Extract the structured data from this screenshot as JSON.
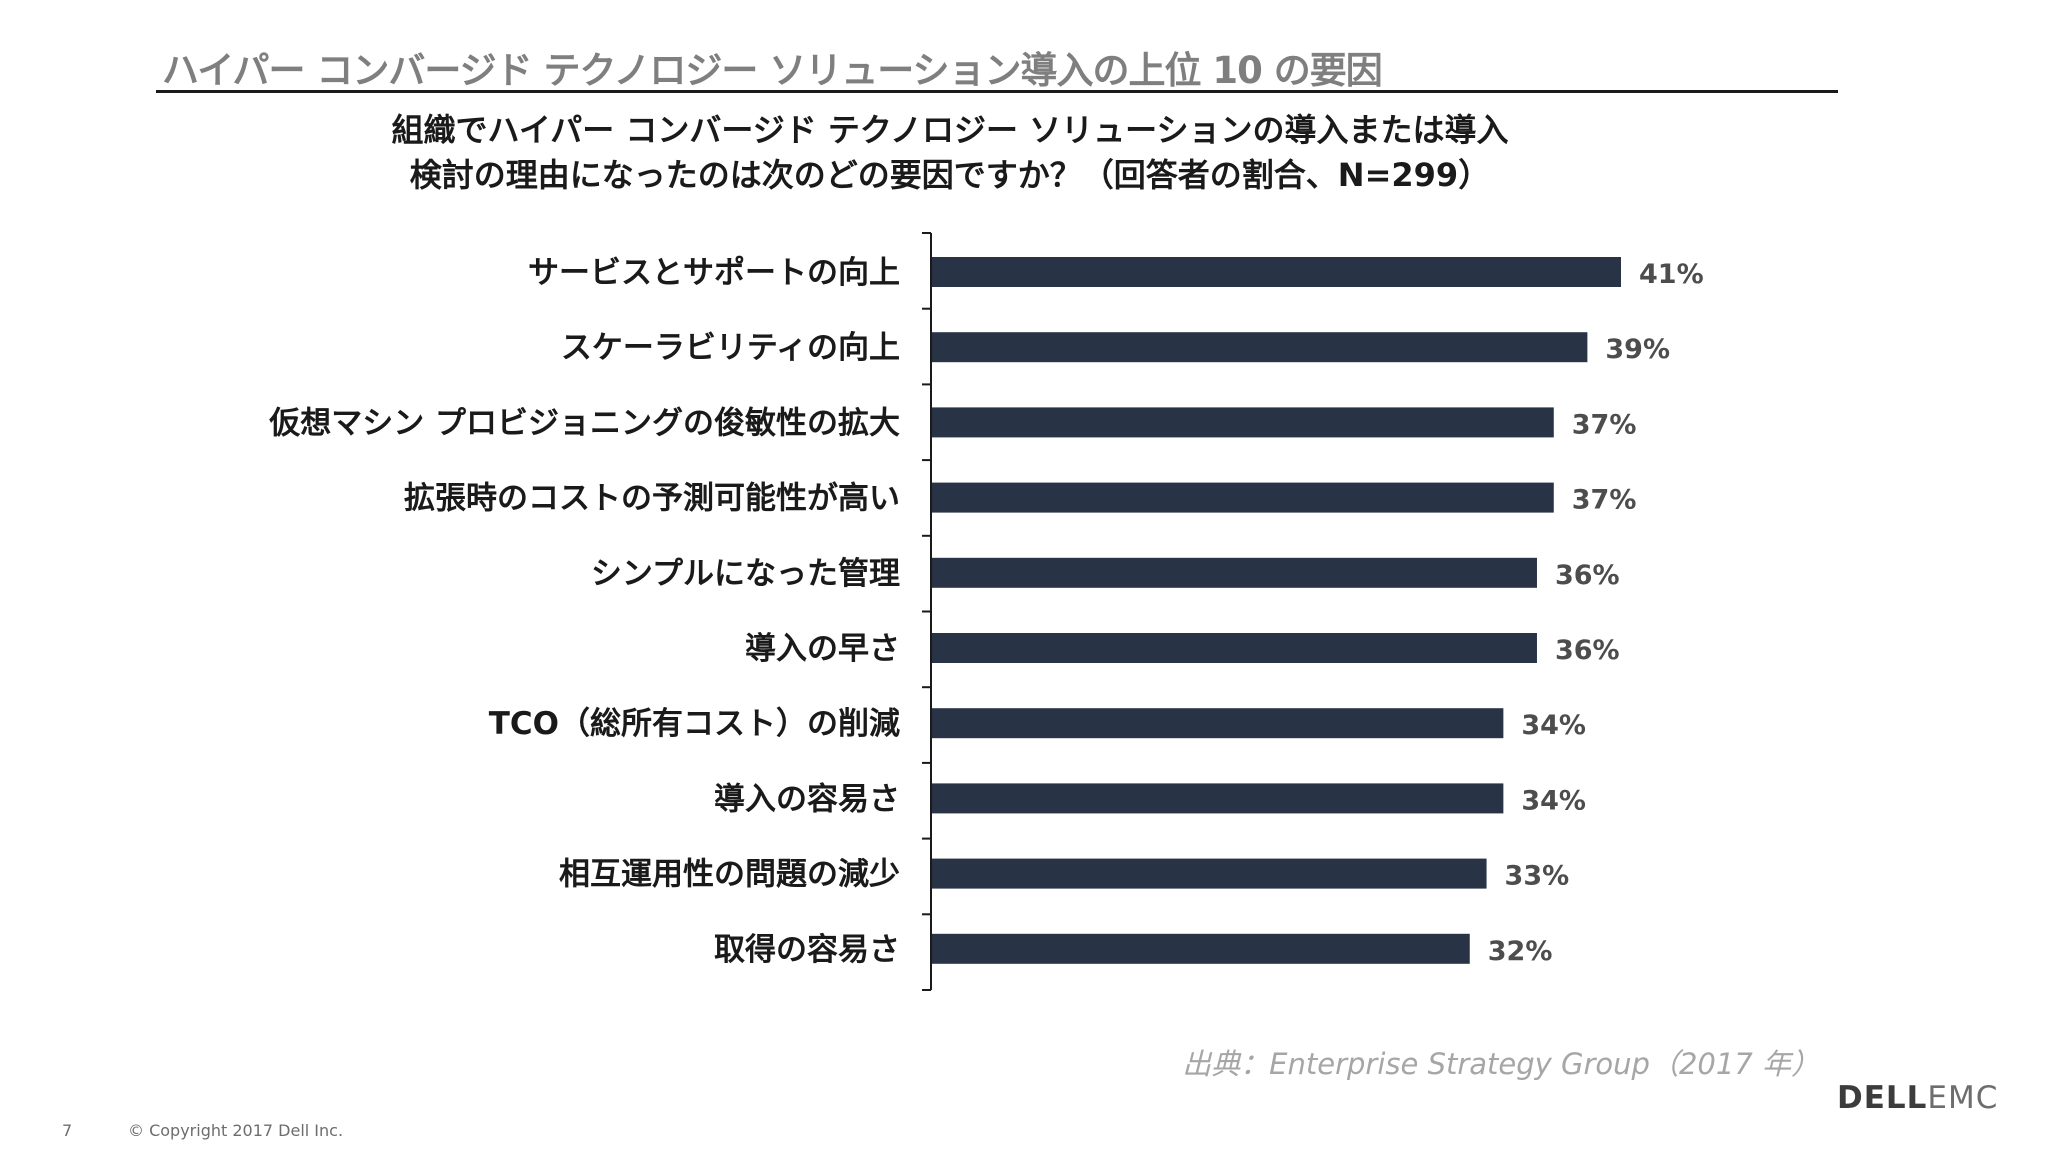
{
  "slide": {
    "title": "ハイパー コンバージド テクノロジー ソリューション導入の上位 10 の要因",
    "page_number": "7",
    "copyright": "© Copyright 2017 Dell Inc.",
    "source": "出典：Enterprise Strategy Group（2017 年）",
    "logo_primary": "DELL",
    "logo_secondary": "EMC"
  },
  "question": {
    "line1": "組織でハイパー コンバージド テクノロジー ソリューションの導入または導入",
    "line2": "検討の理由になったのは次のどの要因ですか？（回答者の割合、N=299）"
  },
  "colors": {
    "bar": "#283445",
    "axis": "#1a1a1a",
    "value_label": "#4d4d4d",
    "category_label": "#1a1a1a"
  },
  "chart_data": {
    "type": "bar",
    "orientation": "horizontal",
    "title": "組織でハイパー コンバージド テクノロジー ソリューションの導入または導入検討の理由になったのは次のどの要因ですか？（回答者の割合、N=299）",
    "xlabel": "",
    "ylabel": "",
    "xlim": [
      0,
      50
    ],
    "grid": false,
    "value_suffix": "%",
    "categories": [
      "サービスとサポートの向上",
      "スケーラビリティの向上",
      "仮想マシン プロビジョニングの俊敏性の拡大",
      "拡張時のコストの予測可能性が高い",
      "シンプルになった管理",
      "導入の早さ",
      "TCO（総所有コスト）の削減",
      "導入の容易さ",
      "相互運用性の問題の減少",
      "取得の容易さ"
    ],
    "values": [
      41,
      39,
      37,
      37,
      36,
      36,
      34,
      34,
      33,
      32
    ],
    "value_labels": [
      "41%",
      "39%",
      "37%",
      "37%",
      "36%",
      "36%",
      "34%",
      "34%",
      "33%",
      "32%"
    ]
  }
}
